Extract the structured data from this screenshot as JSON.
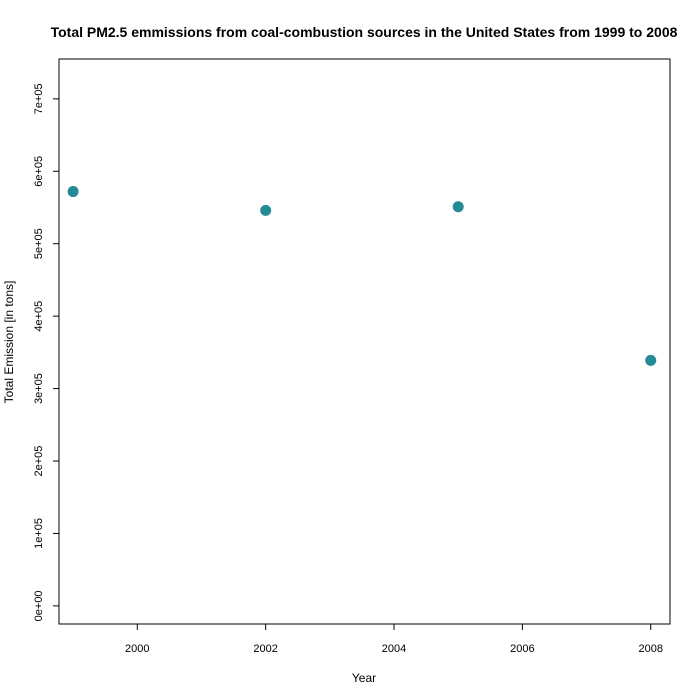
{
  "chart_data": {
    "type": "scatter",
    "title": "Total PM2.5 emmissions from coal-combustion sources in the United States from 1999 to 2008",
    "xlabel": "Year",
    "ylabel": "Total Emission [in tons]",
    "x_ticks": [
      {
        "value": 2000,
        "label": "2000"
      },
      {
        "value": 2002,
        "label": "2002"
      },
      {
        "value": 2004,
        "label": "2004"
      },
      {
        "value": 2006,
        "label": "2006"
      },
      {
        "value": 2008,
        "label": "2008"
      }
    ],
    "y_ticks": [
      {
        "value": 0,
        "label": "0e+00"
      },
      {
        "value": 100000,
        "label": "1e+05"
      },
      {
        "value": 200000,
        "label": "2e+05"
      },
      {
        "value": 300000,
        "label": "3e+05"
      },
      {
        "value": 400000,
        "label": "4e+05"
      },
      {
        "value": 500000,
        "label": "5e+05"
      },
      {
        "value": 600000,
        "label": "6e+05"
      },
      {
        "value": 700000,
        "label": "7e+05"
      }
    ],
    "xlim": [
      1998.78,
      2008.3
    ],
    "ylim": [
      -25000,
      755000
    ],
    "points": [
      {
        "x": 1999,
        "y": 572000
      },
      {
        "x": 2002,
        "y": 546000
      },
      {
        "x": 2005,
        "y": 551000
      },
      {
        "x": 2008,
        "y": 339000
      }
    ],
    "point_color": "#238a96",
    "grid": false,
    "legend": "none"
  }
}
